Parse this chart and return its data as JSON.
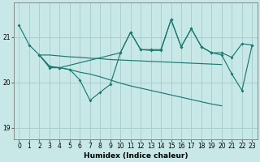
{
  "xlabel": "Humidex (Indice chaleur)",
  "line_color": "#1a7a6e",
  "bg_color": "#c8e8e8",
  "grid_color": "#aacfcf",
  "ylim": [
    18.75,
    21.75
  ],
  "yticks": [
    19,
    20,
    21
  ],
  "xlim": [
    -0.5,
    23.5
  ],
  "series": [
    {
      "name": "line1_top_start",
      "x": [
        0,
        1,
        2,
        3,
        4,
        10,
        11,
        12,
        13,
        14,
        15,
        16,
        17,
        18,
        19,
        20,
        21,
        22,
        23
      ],
      "y": [
        21.25,
        20.82,
        20.6,
        20.32,
        20.32,
        20.65,
        21.1,
        20.72,
        20.72,
        20.72,
        21.38,
        20.78,
        21.18,
        20.78,
        20.65,
        20.65,
        20.55,
        20.85,
        20.82
      ],
      "marker": true
    },
    {
      "name": "line2_flat",
      "x": [
        2,
        3,
        4,
        5,
        6,
        7,
        8,
        9,
        10,
        11,
        12,
        13,
        14,
        15,
        16,
        17,
        18,
        19,
        20
      ],
      "y": [
        20.6,
        20.6,
        20.58,
        20.56,
        20.55,
        20.53,
        20.52,
        20.5,
        20.49,
        20.48,
        20.47,
        20.46,
        20.45,
        20.44,
        20.43,
        20.42,
        20.41,
        20.4,
        20.39
      ],
      "marker": false
    },
    {
      "name": "line3_diagonal_down",
      "x": [
        2,
        3,
        4,
        5,
        6,
        7,
        8,
        9,
        10,
        11,
        12,
        13,
        14,
        15,
        16,
        17,
        18,
        19,
        20
      ],
      "y": [
        20.6,
        20.35,
        20.32,
        20.28,
        20.22,
        20.18,
        20.12,
        20.05,
        19.98,
        19.92,
        19.87,
        19.82,
        19.77,
        19.72,
        19.67,
        19.62,
        19.57,
        19.52,
        19.48
      ],
      "marker": false
    },
    {
      "name": "line4_volatile",
      "x": [
        2,
        3,
        4,
        5,
        6,
        7,
        8,
        9,
        10,
        11,
        12,
        13,
        14,
        15,
        16,
        17,
        18,
        19,
        20,
        21,
        22,
        23
      ],
      "y": [
        20.6,
        20.35,
        20.32,
        20.28,
        20.05,
        19.6,
        19.78,
        19.95,
        20.65,
        21.1,
        20.72,
        20.7,
        20.7,
        21.38,
        20.78,
        21.18,
        20.78,
        20.65,
        20.6,
        20.18,
        19.82,
        20.82
      ],
      "marker": true
    }
  ]
}
